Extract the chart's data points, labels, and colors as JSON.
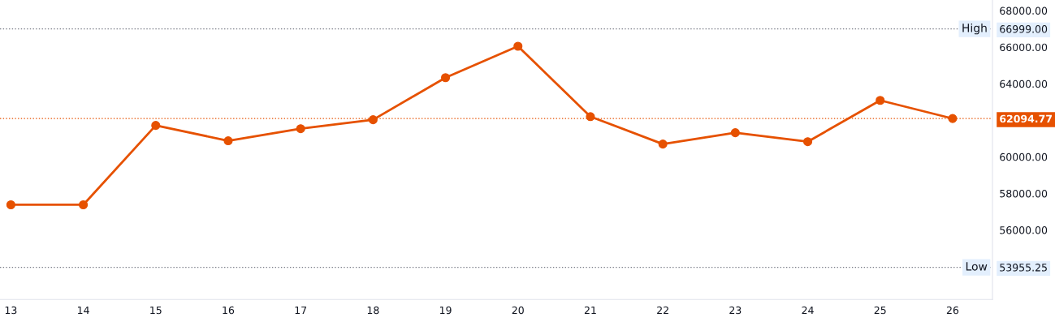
{
  "chart_data": {
    "type": "line",
    "x": [
      13,
      14,
      15,
      16,
      17,
      18,
      19,
      20,
      21,
      22,
      23,
      24,
      25,
      26
    ],
    "series": [
      {
        "color": "#e65100",
        "values": [
          57380,
          57380,
          61720,
          60880,
          61540,
          62030,
          64330,
          66050,
          62200,
          60700,
          61320,
          60830,
          63090,
          62094.77
        ]
      }
    ],
    "xlim": [
      12.85,
      26.55
    ],
    "xticks": [
      13,
      14,
      15,
      16,
      17,
      18,
      19,
      20,
      21,
      22,
      23,
      24,
      25,
      26
    ],
    "ylim": [
      52200,
      68580
    ],
    "yticks": [
      {
        "value": 53955.25,
        "label": "53955.25"
      },
      {
        "value": 56000,
        "label": "56000.00"
      },
      {
        "value": 58000,
        "label": "58000.00"
      },
      {
        "value": 60000,
        "label": "60000.00"
      },
      {
        "value": 62094.77,
        "label": "62094.77"
      },
      {
        "value": 64000,
        "label": "64000.00"
      },
      {
        "value": 66000,
        "label": "66000.00"
      },
      {
        "value": 66999,
        "label": "66999.00"
      },
      {
        "value": 68000,
        "label": "68000.00"
      }
    ],
    "ref_lines": [
      {
        "axis": "y",
        "value": 66999,
        "label": "High",
        "color": "#787b86",
        "line_style": "dotted"
      },
      {
        "axis": "y",
        "value": 53955.25,
        "label": "Low",
        "color": "#787b86",
        "line_style": "dotted"
      },
      {
        "axis": "y",
        "value": 62094.77,
        "label": null,
        "color": "#e65100",
        "line_style": "dotted"
      }
    ],
    "marker": "circle",
    "line_style": "solid",
    "grid": false,
    "legend": false
  }
}
